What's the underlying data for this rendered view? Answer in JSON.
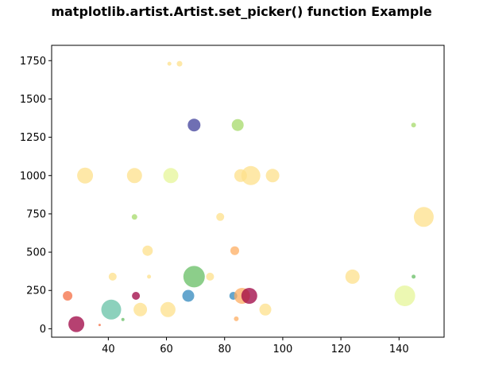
{
  "chart_data": {
    "type": "scatter",
    "title": "matplotlib.artist.Artist.set_picker() function Example",
    "xlabel": "",
    "ylabel": "",
    "xlim": [
      20.5,
      155.5
    ],
    "ylim": [
      -55,
      1850
    ],
    "xticks": [
      40,
      60,
      80,
      100,
      120,
      140
    ],
    "yticks": [
      0,
      250,
      500,
      750,
      1000,
      1250,
      1500,
      1750
    ],
    "grid": false,
    "points": [
      {
        "x": 29,
        "y": 30,
        "size": 20,
        "color": "#9e0142"
      },
      {
        "x": 37,
        "y": 25,
        "size": 3,
        "color": "#f46d43"
      },
      {
        "x": 41,
        "y": 125,
        "size": 25,
        "color": "#66c2a5"
      },
      {
        "x": 45,
        "y": 60,
        "size": 4,
        "color": "#66bd63"
      },
      {
        "x": 51,
        "y": 125,
        "size": 17,
        "color": "#fee08b"
      },
      {
        "x": 60.5,
        "y": 125,
        "size": 19,
        "color": "#fee08b"
      },
      {
        "x": 26,
        "y": 215,
        "size": 12,
        "color": "#f46d43"
      },
      {
        "x": 49.5,
        "y": 215,
        "size": 10,
        "color": "#9e0142"
      },
      {
        "x": 67.5,
        "y": 215,
        "size": 15,
        "color": "#3288bd"
      },
      {
        "x": 83,
        "y": 215,
        "size": 10,
        "color": "#3288bd"
      },
      {
        "x": 86,
        "y": 215,
        "size": 20,
        "color": "#fdae61"
      },
      {
        "x": 88.5,
        "y": 215,
        "size": 20,
        "color": "#9e0142"
      },
      {
        "x": 94,
        "y": 125,
        "size": 15,
        "color": "#fee08b"
      },
      {
        "x": 84,
        "y": 65,
        "size": 6,
        "color": "#fdae61"
      },
      {
        "x": 142,
        "y": 215,
        "size": 26,
        "color": "#e6f598"
      },
      {
        "x": 69.5,
        "y": 340,
        "size": 27,
        "color": "#66bd63"
      },
      {
        "x": 75,
        "y": 340,
        "size": 10,
        "color": "#fee08b"
      },
      {
        "x": 41.5,
        "y": 340,
        "size": 10,
        "color": "#fee08b"
      },
      {
        "x": 54,
        "y": 340,
        "size": 5,
        "color": "#fee08b"
      },
      {
        "x": 124,
        "y": 340,
        "size": 18,
        "color": "#fee08b"
      },
      {
        "x": 145,
        "y": 340,
        "size": 5,
        "color": "#66bd63"
      },
      {
        "x": 53.5,
        "y": 510,
        "size": 13,
        "color": "#fee08b"
      },
      {
        "x": 83.5,
        "y": 510,
        "size": 11,
        "color": "#fdae61"
      },
      {
        "x": 49,
        "y": 730,
        "size": 7,
        "color": "#a6d96a"
      },
      {
        "x": 78.5,
        "y": 730,
        "size": 10,
        "color": "#fee08b"
      },
      {
        "x": 148.5,
        "y": 730,
        "size": 25,
        "color": "#fee08b"
      },
      {
        "x": 32,
        "y": 1000,
        "size": 20,
        "color": "#fee08b"
      },
      {
        "x": 49,
        "y": 1000,
        "size": 19,
        "color": "#fee08b"
      },
      {
        "x": 61.5,
        "y": 1000,
        "size": 19,
        "color": "#e6f598"
      },
      {
        "x": 85.5,
        "y": 1000,
        "size": 16,
        "color": "#fee08b"
      },
      {
        "x": 89,
        "y": 1000,
        "size": 24,
        "color": "#fee08b"
      },
      {
        "x": 96.5,
        "y": 1000,
        "size": 17,
        "color": "#fee08b"
      },
      {
        "x": 69.5,
        "y": 1330,
        "size": 16,
        "color": "#3f3f9a"
      },
      {
        "x": 84.5,
        "y": 1330,
        "size": 15,
        "color": "#a6d96a"
      },
      {
        "x": 145,
        "y": 1330,
        "size": 6,
        "color": "#a6d96a"
      },
      {
        "x": 61,
        "y": 1730,
        "size": 5,
        "color": "#fee08b"
      },
      {
        "x": 64.5,
        "y": 1730,
        "size": 7,
        "color": "#fee08b"
      }
    ]
  }
}
